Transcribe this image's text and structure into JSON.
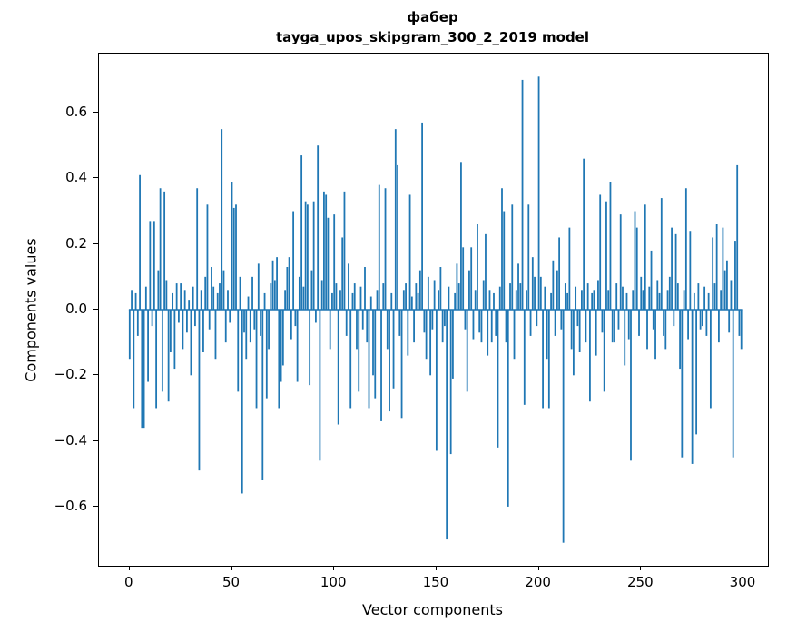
{
  "chart": {
    "title_line1": "фабер",
    "title_line2": "tayga_upos_skipgram_300_2_2019 model",
    "xlabel": "Vector components",
    "ylabel": "Components values"
  },
  "chart_data": {
    "type": "bar",
    "title": "фабер",
    "subtitle": "tayga_upos_skipgram_300_2_2019 model",
    "xlabel": "Vector components",
    "ylabel": "Components values",
    "xlim": [
      -15,
      312
    ],
    "ylim": [
      -0.78,
      0.78
    ],
    "x_ticks": [
      0,
      50,
      100,
      150,
      200,
      250,
      300
    ],
    "y_ticks": [
      -0.6,
      -0.4,
      -0.2,
      0.0,
      0.2,
      0.4,
      0.6
    ],
    "grid": false,
    "legend": "none",
    "bar_color": "#1f77b4",
    "bar_width": 0.8,
    "x_start": 0,
    "values": [
      -0.15,
      0.06,
      -0.3,
      0.05,
      -0.08,
      0.41,
      -0.36,
      -0.36,
      0.07,
      -0.22,
      0.27,
      -0.05,
      0.27,
      -0.3,
      0.12,
      0.37,
      -0.25,
      0.36,
      0.09,
      -0.28,
      -0.13,
      0.05,
      -0.18,
      0.08,
      -0.04,
      0.08,
      -0.12,
      0.06,
      -0.07,
      0.03,
      -0.2,
      0.07,
      -0.05,
      0.37,
      -0.49,
      0.06,
      -0.13,
      0.1,
      0.32,
      -0.06,
      0.13,
      0.07,
      -0.15,
      0.05,
      0.08,
      0.55,
      0.12,
      -0.1,
      0.06,
      -0.04,
      0.39,
      0.31,
      0.32,
      -0.25,
      0.1,
      -0.56,
      -0.07,
      -0.15,
      0.04,
      -0.1,
      0.1,
      -0.06,
      -0.3,
      0.14,
      -0.08,
      -0.52,
      0.05,
      -0.27,
      -0.12,
      0.08,
      0.15,
      0.09,
      0.16,
      -0.3,
      -0.22,
      -0.17,
      0.06,
      0.13,
      0.16,
      -0.09,
      0.3,
      -0.05,
      -0.22,
      0.1,
      0.47,
      0.07,
      0.33,
      0.32,
      -0.23,
      0.12,
      0.33,
      -0.04,
      0.5,
      -0.46,
      0.09,
      0.36,
      0.35,
      0.28,
      -0.12,
      0.05,
      0.29,
      0.08,
      -0.35,
      0.06,
      0.22,
      0.36,
      -0.08,
      0.14,
      -0.3,
      0.05,
      0.08,
      -0.12,
      -0.25,
      0.07,
      -0.06,
      0.13,
      -0.1,
      -0.3,
      0.04,
      -0.2,
      -0.27,
      0.06,
      0.38,
      -0.34,
      0.08,
      0.37,
      -0.12,
      -0.31,
      0.05,
      -0.24,
      0.55,
      0.44,
      -0.08,
      -0.33,
      0.06,
      0.08,
      -0.14,
      0.35,
      0.04,
      -0.1,
      0.08,
      0.05,
      0.12,
      0.57,
      -0.07,
      -0.15,
      0.1,
      -0.2,
      -0.06,
      0.09,
      -0.43,
      0.06,
      0.13,
      -0.1,
      -0.05,
      -0.7,
      0.07,
      -0.44,
      -0.21,
      0.05,
      0.14,
      0.08,
      0.45,
      0.19,
      -0.06,
      -0.25,
      0.12,
      0.19,
      -0.09,
      0.06,
      0.26,
      -0.07,
      -0.1,
      0.09,
      0.23,
      -0.14,
      0.06,
      -0.1,
      0.05,
      -0.08,
      -0.42,
      0.07,
      0.37,
      0.3,
      -0.1,
      -0.6,
      0.08,
      0.32,
      -0.15,
      0.06,
      0.14,
      0.08,
      0.7,
      -0.29,
      0.06,
      0.32,
      -0.08,
      0.16,
      0.1,
      -0.05,
      0.71,
      0.1,
      -0.3,
      0.07,
      -0.15,
      -0.3,
      0.05,
      0.15,
      -0.08,
      0.12,
      0.22,
      -0.06,
      -0.71,
      0.08,
      0.05,
      0.25,
      -0.12,
      -0.2,
      0.07,
      -0.05,
      -0.13,
      0.06,
      0.46,
      -0.1,
      0.08,
      -0.28,
      0.05,
      0.06,
      -0.14,
      0.09,
      0.35,
      -0.07,
      -0.25,
      0.33,
      0.06,
      0.39,
      -0.1,
      -0.1,
      0.08,
      -0.06,
      0.29,
      0.07,
      -0.17,
      0.05,
      -0.09,
      -0.46,
      0.06,
      0.3,
      0.25,
      -0.08,
      0.1,
      0.06,
      0.32,
      -0.12,
      0.07,
      0.18,
      -0.06,
      -0.15,
      0.09,
      0.05,
      0.34,
      -0.08,
      -0.12,
      0.06,
      0.1,
      0.25,
      -0.05,
      0.23,
      0.08,
      -0.18,
      -0.45,
      0.06,
      0.37,
      -0.09,
      0.24,
      -0.47,
      0.05,
      -0.38,
      0.08,
      -0.06,
      -0.05,
      0.07,
      -0.08,
      0.05,
      -0.3,
      0.22,
      0.08,
      0.26,
      -0.1,
      0.06,
      0.25,
      0.12,
      0.15,
      -0.07,
      0.09,
      -0.45,
      0.21,
      0.44,
      -0.08,
      -0.12
    ]
  }
}
